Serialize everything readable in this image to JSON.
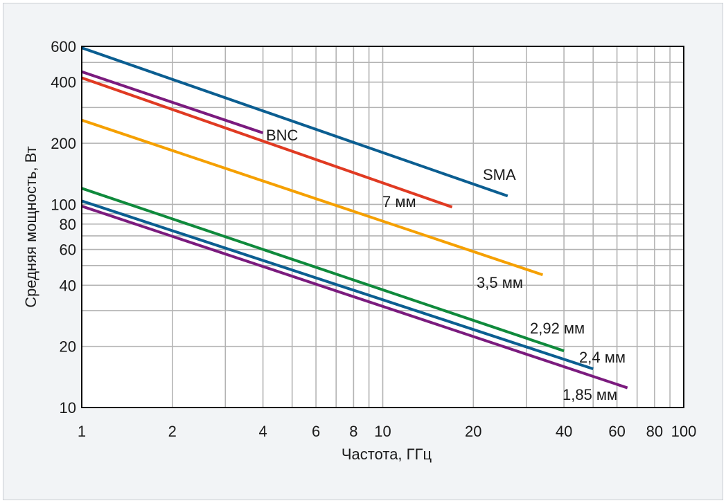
{
  "chart_data": {
    "type": "line",
    "xlabel": "Частота, ГГц",
    "ylabel": "Средняя мощность, Вт",
    "xscale": "log",
    "yscale": "log",
    "xlim": [
      1,
      100
    ],
    "ylim": [
      10,
      600
    ],
    "grid": true,
    "xticks": [
      {
        "value": 1,
        "label": "1"
      },
      {
        "value": 2,
        "label": "2"
      },
      {
        "value": 4,
        "label": "4"
      },
      {
        "value": 6,
        "label": "6"
      },
      {
        "value": 8,
        "label": "8"
      },
      {
        "value": 10,
        "label": "10"
      },
      {
        "value": 20,
        "label": "20"
      },
      {
        "value": 40,
        "label": "40"
      },
      {
        "value": 60,
        "label": "60"
      },
      {
        "value": 80,
        "label": "80"
      },
      {
        "value": 100,
        "label": "100"
      }
    ],
    "yticks": [
      {
        "value": 10,
        "label": "10"
      },
      {
        "value": 20,
        "label": "20"
      },
      {
        "value": 40,
        "label": "40"
      },
      {
        "value": 60,
        "label": "60"
      },
      {
        "value": 80,
        "label": "80"
      },
      {
        "value": 100,
        "label": "100"
      },
      {
        "value": 200,
        "label": "200"
      },
      {
        "value": 400,
        "label": "400"
      },
      {
        "value": 600,
        "label": "600"
      }
    ],
    "series": [
      {
        "name": "SMA",
        "color": "#0b5e91",
        "x": [
          1,
          26
        ],
        "y": [
          590,
          110
        ]
      },
      {
        "name": "BNC",
        "color": "#7b1b7e",
        "x": [
          1,
          4
        ],
        "y": [
          450,
          225
        ]
      },
      {
        "name": "7 мм",
        "color": "#e03a22",
        "x": [
          1,
          17
        ],
        "y": [
          420,
          97
        ]
      },
      {
        "name": "3,5 мм",
        "color": "#f5a000",
        "x": [
          1,
          34
        ],
        "y": [
          260,
          45
        ]
      },
      {
        "name": "2,92 мм",
        "color": "#0f8a3c",
        "x": [
          1,
          40
        ],
        "y": [
          120,
          19
        ]
      },
      {
        "name": "2,4 мм",
        "color": "#0b5e91",
        "x": [
          1,
          50
        ],
        "y": [
          104,
          15.5
        ]
      },
      {
        "name": "1,85 мм",
        "color": "#7b1b7e",
        "x": [
          1,
          65
        ],
        "y": [
          98,
          12.5
        ]
      }
    ]
  }
}
